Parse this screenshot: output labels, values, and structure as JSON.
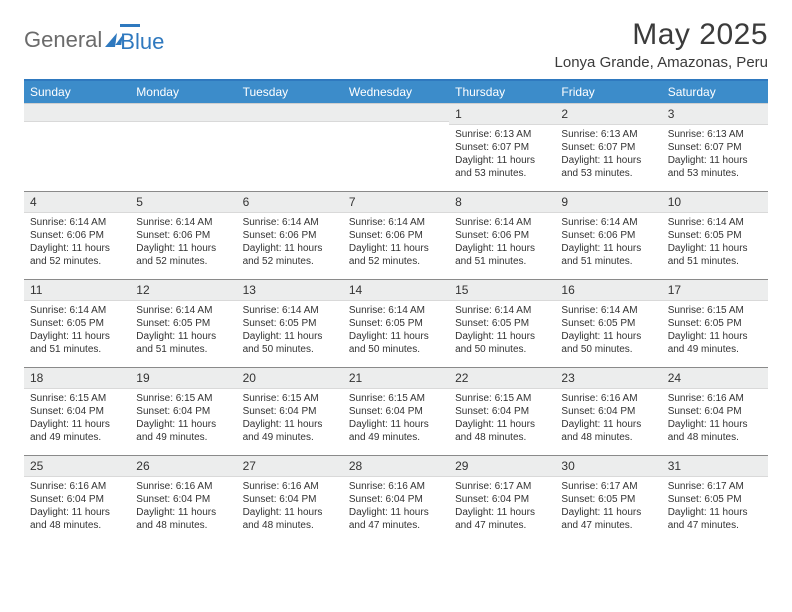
{
  "brand": {
    "left": "General",
    "right": "Blue"
  },
  "title": "May 2025",
  "location": "Lonya Grande, Amazonas, Peru",
  "headers": [
    "Sunday",
    "Monday",
    "Tuesday",
    "Wednesday",
    "Thursday",
    "Friday",
    "Saturday"
  ],
  "colors": {
    "header_bg": "#3c8cca",
    "header_border_top": "#2f79bf",
    "daynum_bg": "#eceded",
    "row_border": "#8a8a8a",
    "text": "#333333",
    "title": "#3b3b3b",
    "logo_gray": "#6b6b6b"
  },
  "weeks": [
    [
      {
        "n": "",
        "sr": "",
        "ss": "",
        "dl": ""
      },
      {
        "n": "",
        "sr": "",
        "ss": "",
        "dl": ""
      },
      {
        "n": "",
        "sr": "",
        "ss": "",
        "dl": ""
      },
      {
        "n": "",
        "sr": "",
        "ss": "",
        "dl": ""
      },
      {
        "n": "1",
        "sr": "Sunrise: 6:13 AM",
        "ss": "Sunset: 6:07 PM",
        "dl": "Daylight: 11 hours and 53 minutes."
      },
      {
        "n": "2",
        "sr": "Sunrise: 6:13 AM",
        "ss": "Sunset: 6:07 PM",
        "dl": "Daylight: 11 hours and 53 minutes."
      },
      {
        "n": "3",
        "sr": "Sunrise: 6:13 AM",
        "ss": "Sunset: 6:07 PM",
        "dl": "Daylight: 11 hours and 53 minutes."
      }
    ],
    [
      {
        "n": "4",
        "sr": "Sunrise: 6:14 AM",
        "ss": "Sunset: 6:06 PM",
        "dl": "Daylight: 11 hours and 52 minutes."
      },
      {
        "n": "5",
        "sr": "Sunrise: 6:14 AM",
        "ss": "Sunset: 6:06 PM",
        "dl": "Daylight: 11 hours and 52 minutes."
      },
      {
        "n": "6",
        "sr": "Sunrise: 6:14 AM",
        "ss": "Sunset: 6:06 PM",
        "dl": "Daylight: 11 hours and 52 minutes."
      },
      {
        "n": "7",
        "sr": "Sunrise: 6:14 AM",
        "ss": "Sunset: 6:06 PM",
        "dl": "Daylight: 11 hours and 52 minutes."
      },
      {
        "n": "8",
        "sr": "Sunrise: 6:14 AM",
        "ss": "Sunset: 6:06 PM",
        "dl": "Daylight: 11 hours and 51 minutes."
      },
      {
        "n": "9",
        "sr": "Sunrise: 6:14 AM",
        "ss": "Sunset: 6:06 PM",
        "dl": "Daylight: 11 hours and 51 minutes."
      },
      {
        "n": "10",
        "sr": "Sunrise: 6:14 AM",
        "ss": "Sunset: 6:05 PM",
        "dl": "Daylight: 11 hours and 51 minutes."
      }
    ],
    [
      {
        "n": "11",
        "sr": "Sunrise: 6:14 AM",
        "ss": "Sunset: 6:05 PM",
        "dl": "Daylight: 11 hours and 51 minutes."
      },
      {
        "n": "12",
        "sr": "Sunrise: 6:14 AM",
        "ss": "Sunset: 6:05 PM",
        "dl": "Daylight: 11 hours and 51 minutes."
      },
      {
        "n": "13",
        "sr": "Sunrise: 6:14 AM",
        "ss": "Sunset: 6:05 PM",
        "dl": "Daylight: 11 hours and 50 minutes."
      },
      {
        "n": "14",
        "sr": "Sunrise: 6:14 AM",
        "ss": "Sunset: 6:05 PM",
        "dl": "Daylight: 11 hours and 50 minutes."
      },
      {
        "n": "15",
        "sr": "Sunrise: 6:14 AM",
        "ss": "Sunset: 6:05 PM",
        "dl": "Daylight: 11 hours and 50 minutes."
      },
      {
        "n": "16",
        "sr": "Sunrise: 6:14 AM",
        "ss": "Sunset: 6:05 PM",
        "dl": "Daylight: 11 hours and 50 minutes."
      },
      {
        "n": "17",
        "sr": "Sunrise: 6:15 AM",
        "ss": "Sunset: 6:05 PM",
        "dl": "Daylight: 11 hours and 49 minutes."
      }
    ],
    [
      {
        "n": "18",
        "sr": "Sunrise: 6:15 AM",
        "ss": "Sunset: 6:04 PM",
        "dl": "Daylight: 11 hours and 49 minutes."
      },
      {
        "n": "19",
        "sr": "Sunrise: 6:15 AM",
        "ss": "Sunset: 6:04 PM",
        "dl": "Daylight: 11 hours and 49 minutes."
      },
      {
        "n": "20",
        "sr": "Sunrise: 6:15 AM",
        "ss": "Sunset: 6:04 PM",
        "dl": "Daylight: 11 hours and 49 minutes."
      },
      {
        "n": "21",
        "sr": "Sunrise: 6:15 AM",
        "ss": "Sunset: 6:04 PM",
        "dl": "Daylight: 11 hours and 49 minutes."
      },
      {
        "n": "22",
        "sr": "Sunrise: 6:15 AM",
        "ss": "Sunset: 6:04 PM",
        "dl": "Daylight: 11 hours and 48 minutes."
      },
      {
        "n": "23",
        "sr": "Sunrise: 6:16 AM",
        "ss": "Sunset: 6:04 PM",
        "dl": "Daylight: 11 hours and 48 minutes."
      },
      {
        "n": "24",
        "sr": "Sunrise: 6:16 AM",
        "ss": "Sunset: 6:04 PM",
        "dl": "Daylight: 11 hours and 48 minutes."
      }
    ],
    [
      {
        "n": "25",
        "sr": "Sunrise: 6:16 AM",
        "ss": "Sunset: 6:04 PM",
        "dl": "Daylight: 11 hours and 48 minutes."
      },
      {
        "n": "26",
        "sr": "Sunrise: 6:16 AM",
        "ss": "Sunset: 6:04 PM",
        "dl": "Daylight: 11 hours and 48 minutes."
      },
      {
        "n": "27",
        "sr": "Sunrise: 6:16 AM",
        "ss": "Sunset: 6:04 PM",
        "dl": "Daylight: 11 hours and 48 minutes."
      },
      {
        "n": "28",
        "sr": "Sunrise: 6:16 AM",
        "ss": "Sunset: 6:04 PM",
        "dl": "Daylight: 11 hours and 47 minutes."
      },
      {
        "n": "29",
        "sr": "Sunrise: 6:17 AM",
        "ss": "Sunset: 6:04 PM",
        "dl": "Daylight: 11 hours and 47 minutes."
      },
      {
        "n": "30",
        "sr": "Sunrise: 6:17 AM",
        "ss": "Sunset: 6:05 PM",
        "dl": "Daylight: 11 hours and 47 minutes."
      },
      {
        "n": "31",
        "sr": "Sunrise: 6:17 AM",
        "ss": "Sunset: 6:05 PM",
        "dl": "Daylight: 11 hours and 47 minutes."
      }
    ]
  ]
}
